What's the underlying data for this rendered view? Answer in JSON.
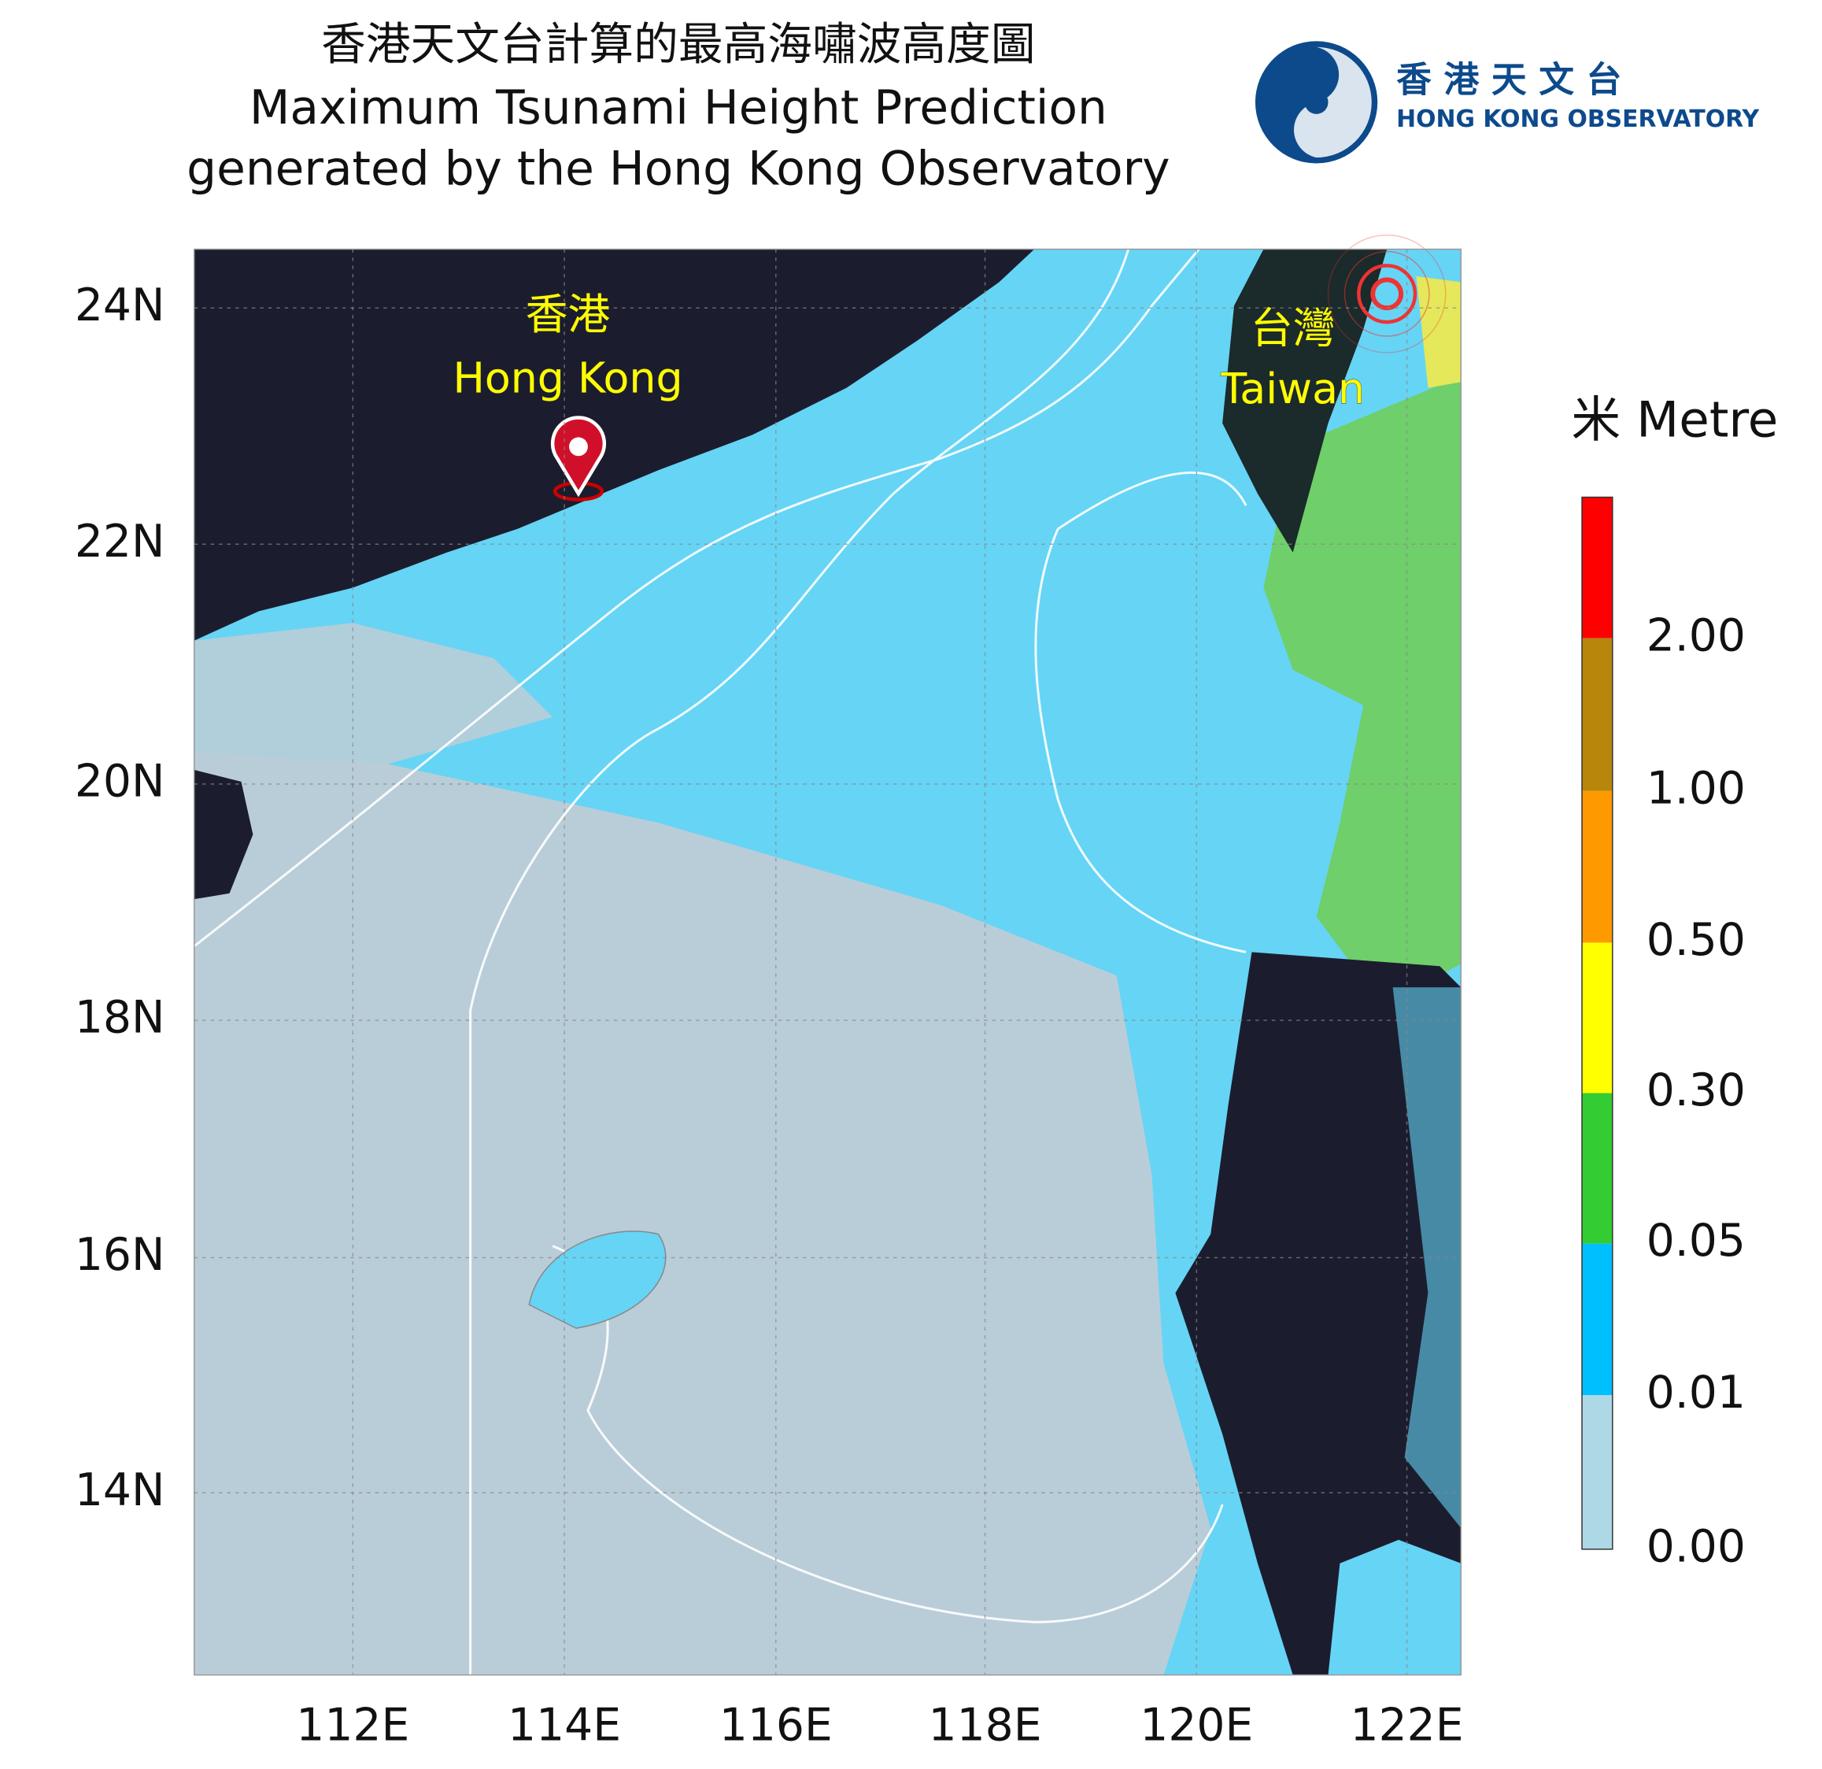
{
  "title": {
    "zh": "香港天文台計算的最高海嘯波高度圖",
    "en_line1": "Maximum Tsunami Height Prediction",
    "en_line2": "generated by the Hong Kong Observatory"
  },
  "logo": {
    "zh": "香 港 天 文 台",
    "en": "HONG KONG OBSERVATORY"
  },
  "map": {
    "lat_labels": [
      "24N",
      "22N",
      "20N",
      "18N",
      "16N",
      "14N"
    ],
    "lon_labels": [
      "112E",
      "114E",
      "116E",
      "118E",
      "120E",
      "122E"
    ],
    "places": [
      {
        "zh": "香港",
        "en": "Hong Kong"
      },
      {
        "zh": "台灣",
        "en": "Taiwan"
      }
    ]
  },
  "legend": {
    "title": "米 Metre",
    "labels": [
      "2.00",
      "1.00",
      "0.50",
      "0.30",
      "0.05",
      "0.01",
      "0.00"
    ]
  }
}
